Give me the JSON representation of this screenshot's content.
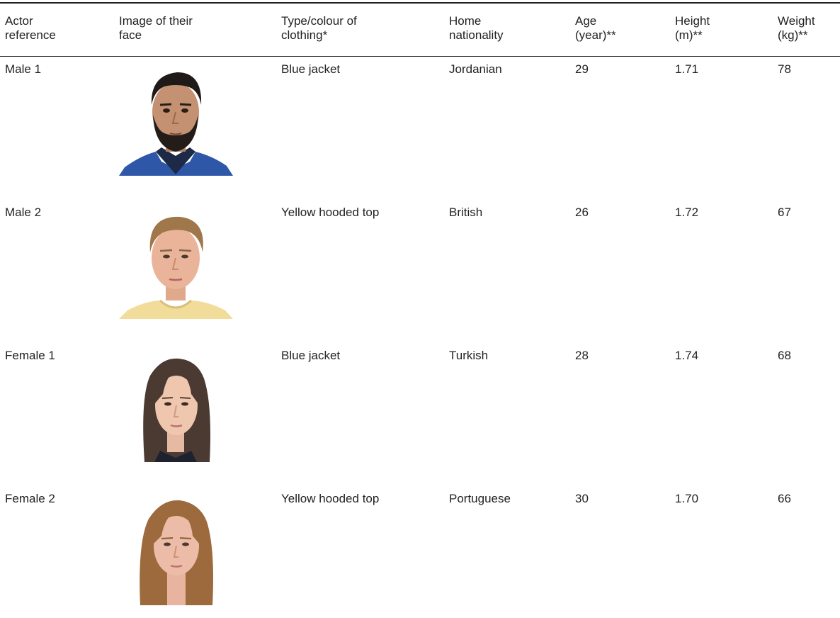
{
  "table": {
    "headers": [
      "Actor\nreference",
      "Image of their\nface",
      "Type/colour of\nclothing*",
      "Home\nnationality",
      "Age\n(year)**",
      "Height\n(m)**",
      "Weight\n(kg)**"
    ],
    "rows": [
      {
        "actor": "Male 1",
        "face_image": "male-dark-hair-beard-blue-jacket-photo",
        "clothing": "Blue jacket",
        "nationality": "Jordanian",
        "age": "29",
        "height": "1.71",
        "weight": "78"
      },
      {
        "actor": "Male 2",
        "face_image": "male-light-hair-yellow-hood-photo",
        "clothing": "Yellow hooded top",
        "nationality": "British",
        "age": "26",
        "height": "1.72",
        "weight": "67"
      },
      {
        "actor": "Female 1",
        "face_image": "female-long-dark-hair-photo",
        "clothing": "Blue jacket",
        "nationality": "Turkish",
        "age": "28",
        "height": "1.74",
        "weight": "68"
      },
      {
        "actor": "Female 2",
        "face_image": "female-long-brown-hair-photo",
        "clothing": "Yellow hooded top",
        "nationality": "Portuguese",
        "age": "30",
        "height": "1.70",
        "weight": "66"
      }
    ]
  }
}
